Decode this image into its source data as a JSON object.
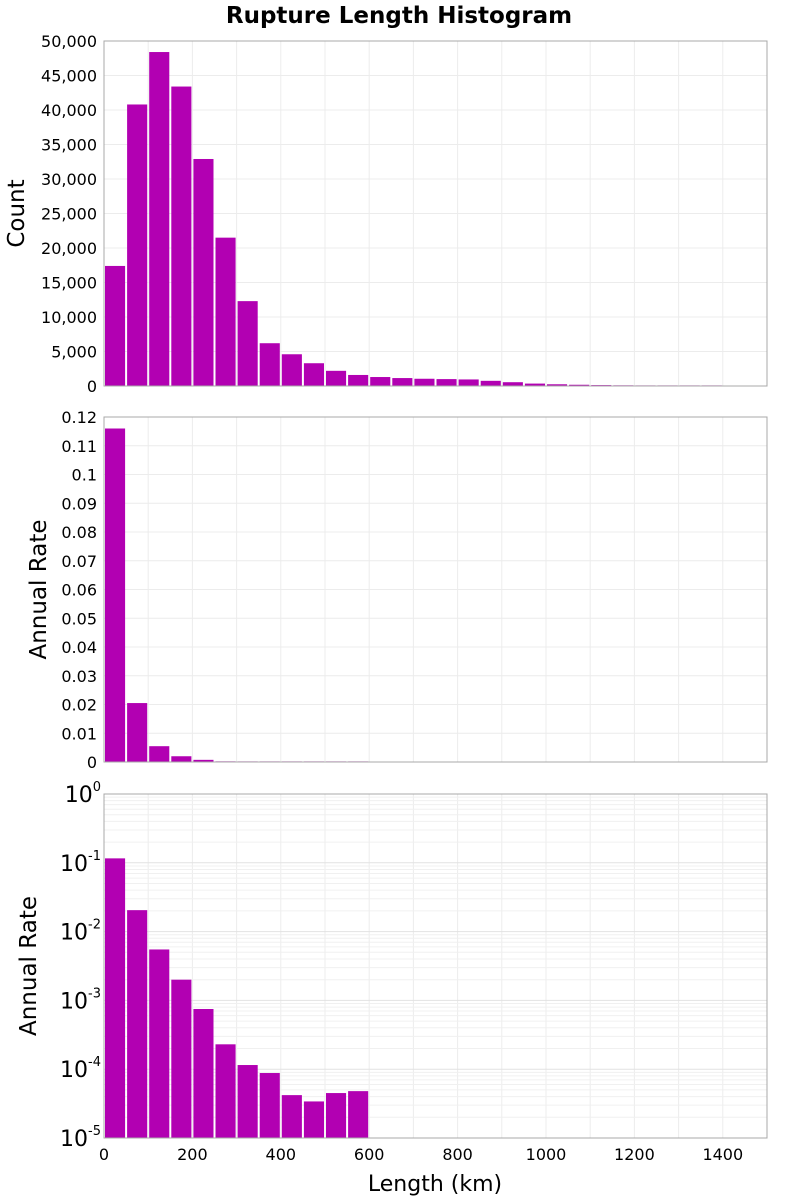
{
  "chart_data": {
    "type": "bar",
    "title": "Rupture Length Histogram",
    "xlabel": "Length (km)",
    "xlim": [
      0,
      1500
    ],
    "x_ticks": [
      "0",
      "200",
      "400",
      "600",
      "800",
      "1000",
      "1200",
      "1400"
    ],
    "bin_width": 50,
    "bar_color": "#b200b2",
    "grid": true,
    "panels": [
      {
        "id": "count",
        "ylabel": "Count",
        "scale": "linear",
        "ylim": [
          0,
          50000
        ],
        "y_ticks": [
          "0",
          "5,000",
          "10,000",
          "15,000",
          "20,000",
          "25,000",
          "30,000",
          "35,000",
          "40,000",
          "45,000",
          "50,000"
        ],
        "x": [
          25,
          75,
          125,
          175,
          225,
          275,
          325,
          375,
          425,
          475,
          525,
          575,
          625,
          675,
          725,
          775,
          825,
          875,
          925,
          975,
          1025,
          1075,
          1125,
          1175,
          1225,
          1275,
          1325,
          1375
        ],
        "values": [
          17400,
          40800,
          48400,
          43400,
          32900,
          21500,
          12300,
          6200,
          4600,
          3300,
          2200,
          1600,
          1300,
          1150,
          1050,
          1000,
          950,
          750,
          550,
          350,
          250,
          180,
          130,
          100,
          80,
          60,
          40,
          25
        ]
      },
      {
        "id": "rate-linear",
        "ylabel": "Annual Rate",
        "scale": "linear",
        "ylim": [
          0,
          0.12
        ],
        "y_ticks": [
          "0",
          "0.01",
          "0.02",
          "0.03",
          "0.04",
          "0.05",
          "0.06",
          "0.07",
          "0.08",
          "0.09",
          "0.1",
          "0.11",
          "0.12"
        ],
        "x": [
          25,
          75,
          125,
          175,
          225,
          275,
          325,
          375,
          425,
          475,
          525,
          575
        ],
        "values": [
          0.116,
          0.0205,
          0.0055,
          0.002,
          0.00075,
          0.00023,
          0.000115,
          8.8e-05,
          4.2e-05,
          3.4e-05,
          4.5e-05,
          4.8e-05
        ]
      },
      {
        "id": "rate-log",
        "ylabel": "Annual Rate",
        "scale": "log",
        "ylim": [
          1e-05,
          1
        ],
        "y_ticks": [
          {
            "base": "10",
            "exp": "0"
          },
          {
            "base": "10",
            "exp": "-1"
          },
          {
            "base": "10",
            "exp": "-2"
          },
          {
            "base": "10",
            "exp": "-3"
          },
          {
            "base": "10",
            "exp": "-4"
          },
          {
            "base": "10",
            "exp": "-5"
          }
        ],
        "x": [
          25,
          75,
          125,
          175,
          225,
          275,
          325,
          375,
          425,
          475,
          525,
          575
        ],
        "values": [
          0.116,
          0.0205,
          0.0055,
          0.002,
          0.00075,
          0.00023,
          0.000115,
          8.8e-05,
          4.2e-05,
          3.4e-05,
          4.5e-05,
          4.8e-05
        ]
      }
    ]
  }
}
